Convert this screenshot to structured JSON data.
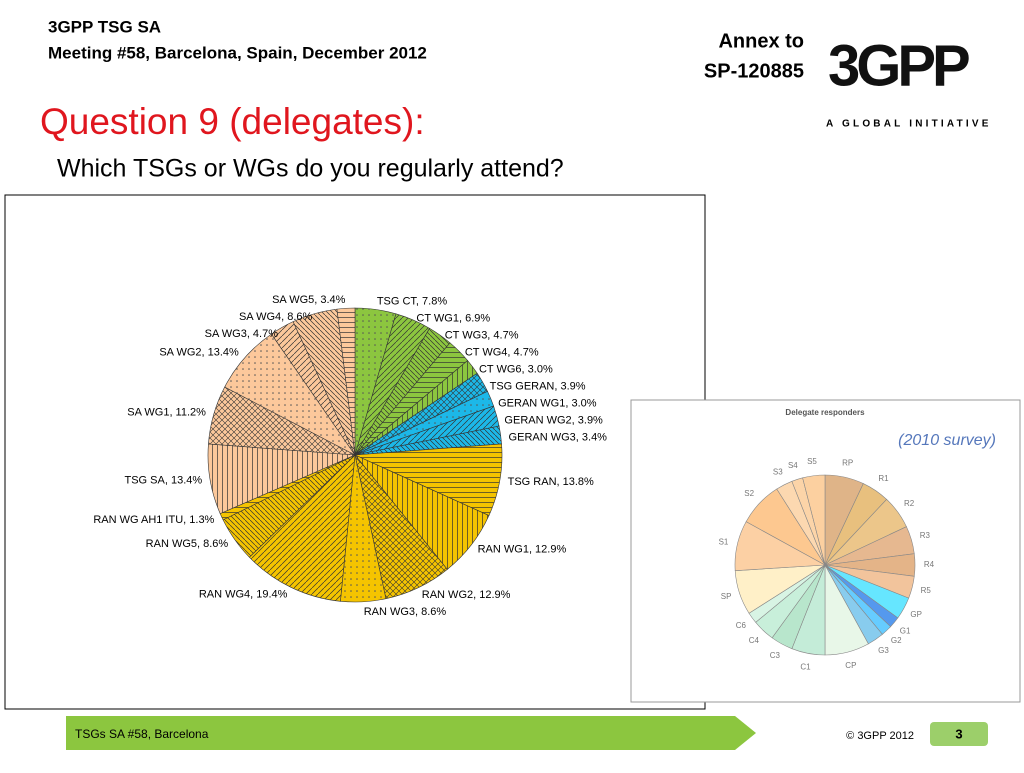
{
  "header": {
    "org": "3GPP TSG SA",
    "meeting": "Meeting #58, Barcelona, Spain, December 2012",
    "annex": "Annex to",
    "doc": "SP-120885",
    "logo": "3GPP",
    "logo_tag": "A GLOBAL INITIATIVE",
    "title": "Question 9 (delegates):",
    "subtitle": "Which TSGs or WGs do you regularly attend?"
  },
  "chart_data": [
    {
      "type": "pie",
      "values": [
        7.8,
        6.9,
        4.7,
        4.7,
        3.0,
        3.9,
        3.0,
        3.9,
        3.4,
        13.8,
        12.9,
        12.9,
        8.6,
        19.4,
        8.6,
        1.3,
        13.4,
        11.2,
        13.4,
        4.7,
        8.6,
        3.4
      ],
      "value_labels": [
        "TSG CT, 7.8%",
        "CT WG1, 6.9%",
        "CT WG3, 4.7%",
        "CT WG4, 4.7%",
        "CT WG6, 3.0%",
        "TSG GERAN, 3.9%",
        "GERAN WG1, 3.0%",
        "GERAN WG2, 3.9%",
        "GERAN WG3, 3.4%",
        "TSG RAN, 13.8%",
        "RAN WG1, 12.9%",
        "RAN WG2, 12.9%",
        "RAN WG3, 8.6%",
        "RAN WG4, 19.4%",
        "RAN WG5, 8.6%",
        "RAN WG AH1 ITU, 1.3%",
        "TSG SA, 13.4%",
        "SA WG1, 11.2%",
        "SA WG2, 13.4%",
        "SA WG3, 4.7%",
        "SA WG4, 8.6%",
        "SA WG5, 3.4%"
      ],
      "colors": [
        "#8cc63f",
        "#8cc63f",
        "#8cc63f",
        "#8cc63f",
        "#8cc63f",
        "#1cb8e8",
        "#1cb8e8",
        "#1cb8e8",
        "#1cb8e8",
        "#f5c400",
        "#f5c400",
        "#f5c400",
        "#f5c400",
        "#f5c400",
        "#f5c400",
        "#f5c400",
        "#fcc89b",
        "#fcc89b",
        "#fcc89b",
        "#fcc89b",
        "#fcc89b",
        "#fcc89b"
      ]
    },
    {
      "type": "pie",
      "title": "Delegate responders",
      "annotation": "(2010 survey)",
      "categories": [
        "RP",
        "R1",
        "R2",
        "R3",
        "R4",
        "R5",
        "GP",
        "G1",
        "G2",
        "G3",
        "CP",
        "C1",
        "C3",
        "C4",
        "C6",
        "SP",
        "S1",
        "S2",
        "S3",
        "S4",
        "S5"
      ],
      "values": [
        7,
        5,
        6,
        5,
        4,
        4,
        4,
        2,
        2,
        3,
        8,
        6,
        4,
        4,
        2,
        8,
        9,
        8,
        3,
        2,
        4
      ],
      "colors": [
        "#dfb488",
        "#e8c07e",
        "#ecc68a",
        "#e6b890",
        "#e4b488",
        "#f2c49c",
        "#66e6ff",
        "#5599ee",
        "#66ccff",
        "#88ccee",
        "#e8f7e8",
        "#c4ecd8",
        "#b8e6cc",
        "#c8efda",
        "#d8f4e4",
        "#fff0c8",
        "#fcd0a4",
        "#fdc890",
        "#fcd8b0",
        "#fcd4a8",
        "#fcd0a0"
      ]
    }
  ],
  "footer": {
    "left": "TSGs SA #58, Barcelona",
    "copyright": "© 3GPP 2012",
    "page": "3"
  }
}
